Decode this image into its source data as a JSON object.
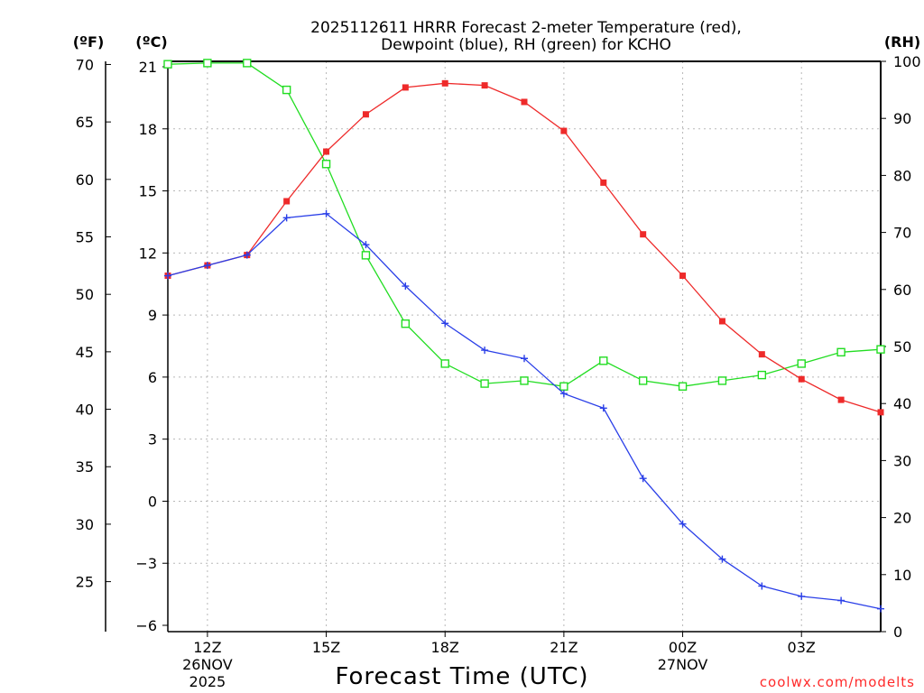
{
  "chart_data": {
    "type": "line",
    "title_line1": "2025112611 HRRR Forecast 2-meter Temperature (red),",
    "title_line2": "Dewpoint (blue), RH (green) for KCHO",
    "xlabel": "Forecast Time (UTC)",
    "credit": "coolwx.com/modelts",
    "units": {
      "fahrenheit": "(ºF)",
      "celsius": "(ºC)",
      "rh": "(RH)"
    },
    "x": [
      11,
      12,
      13,
      14,
      15,
      16,
      17,
      18,
      19,
      20,
      21,
      22,
      23,
      24,
      25,
      26,
      27,
      28,
      29
    ],
    "xlim": [
      11,
      29
    ],
    "x_ticks": [
      {
        "x": 12,
        "label": "12Z",
        "sub1": "26NOV",
        "sub2": "2025"
      },
      {
        "x": 15,
        "label": "15Z",
        "sub1": "",
        "sub2": ""
      },
      {
        "x": 18,
        "label": "18Z",
        "sub1": "",
        "sub2": ""
      },
      {
        "x": 21,
        "label": "21Z",
        "sub1": "",
        "sub2": ""
      },
      {
        "x": 24,
        "label": "00Z",
        "sub1": "27NOV",
        "sub2": ""
      },
      {
        "x": 27,
        "label": "03Z",
        "sub1": "",
        "sub2": ""
      }
    ],
    "ylim_c": [
      -6,
      21
    ],
    "ylim_rh": [
      0,
      100
    ],
    "yticks_c": [
      "21",
      "18",
      "15",
      "12",
      "9",
      "6",
      "3",
      "0",
      "−3",
      "−6"
    ],
    "yticks_f": [
      "70",
      "65",
      "60",
      "55",
      "50",
      "45",
      "40",
      "35",
      "30",
      "25"
    ],
    "yticks_rh": [
      "100",
      "90",
      "80",
      "70",
      "60",
      "50",
      "40",
      "30",
      "20",
      "10",
      "0"
    ],
    "series": [
      {
        "name": "2-meter Temperature (°C)",
        "axis": "c",
        "color": "#ee2a2a",
        "marker": "filled-square",
        "values": [
          10.9,
          11.4,
          11.9,
          14.5,
          16.9,
          18.7,
          20.0,
          20.2,
          20.1,
          19.3,
          17.9,
          15.4,
          12.9,
          10.9,
          8.7,
          7.1,
          5.9,
          4.9,
          4.3
        ]
      },
      {
        "name": "Dewpoint (°C)",
        "axis": "c",
        "color": "#2a3fe8",
        "marker": "plus",
        "values": [
          10.9,
          11.4,
          11.9,
          13.7,
          13.9,
          12.4,
          10.4,
          8.6,
          7.3,
          6.9,
          5.2,
          4.5,
          1.1,
          -1.1,
          -2.8,
          -4.1,
          -4.6,
          -4.8,
          -5.2
        ]
      },
      {
        "name": "Relative Humidity (%)",
        "axis": "rh",
        "color": "#22dd22",
        "marker": "open-square",
        "values": [
          99.5,
          99.7,
          99.7,
          95.0,
          82.0,
          66.0,
          54.0,
          47.0,
          43.5,
          44.0,
          43.0,
          47.5,
          44.0,
          43.0,
          44.0,
          45.0,
          47.0,
          49.0,
          49.5
        ]
      }
    ]
  }
}
